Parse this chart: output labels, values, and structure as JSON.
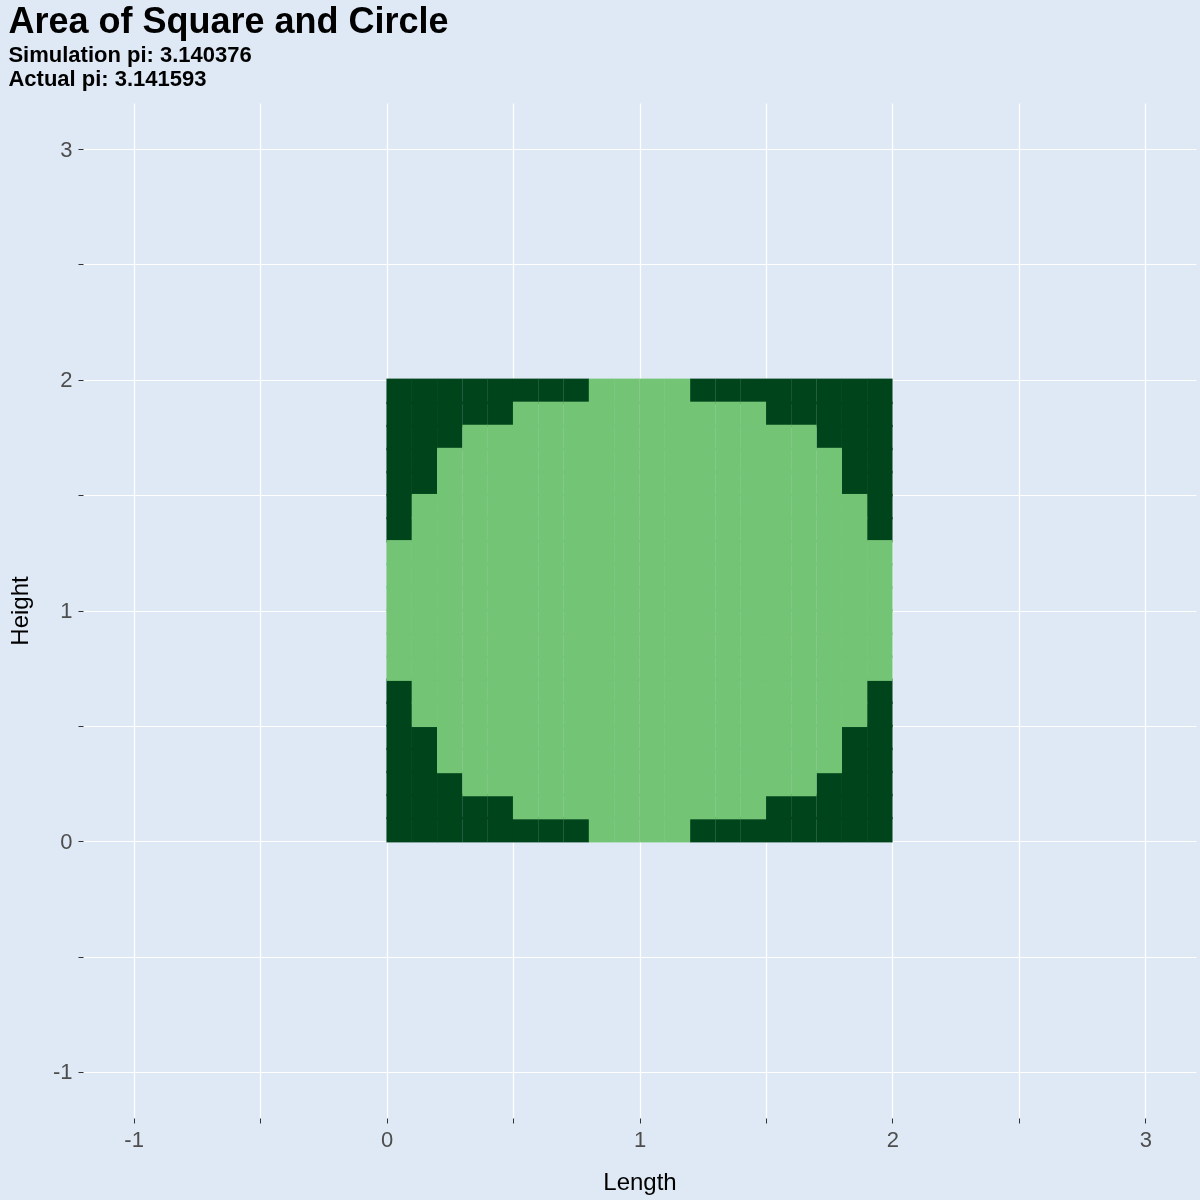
{
  "chart_data": {
    "type": "scatter",
    "title": "Area of Square and Circle",
    "subtitle": "Simulation pi: 3.140376\nActual pi: 3.141593",
    "xlabel": "Length",
    "ylabel": "Height",
    "xlim": [
      -1.2,
      3.2
    ],
    "ylim": [
      -1.2,
      3.2
    ],
    "xticks": [
      -1,
      {
        "value": -0.5,
        "label": null
      },
      0,
      {
        "value": 0.5,
        "label": null
      },
      1,
      {
        "value": 1.5,
        "label": null
      },
      2,
      {
        "value": 2.5,
        "label": null
      },
      3
    ],
    "yticks": [
      -1,
      {
        "value": -0.5,
        "label": null
      },
      0,
      {
        "value": 0.5,
        "label": null
      },
      1,
      {
        "value": 1.5,
        "label": null
      },
      2,
      {
        "value": 2.5,
        "label": null
      },
      3
    ],
    "grid": true,
    "marker": "square",
    "series": [
      {
        "color": "#00441b",
        "x": [
          0.05,
          0.15,
          0.25,
          0.35,
          0.45,
          0.55,
          0.65,
          0.75,
          1.25,
          1.35,
          1.45,
          1.55,
          1.65,
          1.75,
          1.85,
          1.95,
          0.05,
          0.15,
          0.25,
          0.35,
          0.45,
          1.55,
          1.65,
          1.75,
          1.85,
          1.95,
          0.05,
          0.15,
          0.25,
          1.75,
          1.85,
          1.95,
          0.05,
          0.15,
          1.85,
          1.95,
          0.05,
          0.15,
          1.85,
          1.95,
          0.05,
          1.95,
          0.05,
          1.95,
          0.05,
          1.95,
          0.05,
          1.95,
          0.05,
          0.15,
          1.85,
          1.95,
          0.05,
          0.15,
          1.85,
          1.95,
          0.05,
          0.15,
          0.25,
          1.75,
          1.85,
          1.95,
          0.05,
          0.15,
          0.25,
          0.35,
          0.45,
          1.55,
          1.65,
          1.75,
          1.85,
          1.95,
          0.05,
          0.15,
          0.25,
          0.35,
          0.45,
          0.55,
          0.65,
          0.75,
          1.25,
          1.35,
          1.45,
          1.55,
          1.65,
          1.75,
          1.85,
          1.95
        ],
        "values": [
          0.05,
          0.05,
          0.05,
          0.05,
          0.05,
          0.05,
          0.05,
          0.05,
          0.05,
          0.05,
          0.05,
          0.05,
          0.05,
          0.05,
          0.05,
          0.05,
          0.15,
          0.15,
          0.15,
          0.15,
          0.15,
          0.15,
          0.15,
          0.15,
          0.15,
          0.15,
          0.25,
          0.25,
          0.25,
          0.25,
          0.25,
          0.25,
          0.35,
          0.35,
          0.35,
          0.35,
          0.45,
          0.45,
          0.45,
          0.45,
          0.55,
          0.55,
          0.65,
          0.65,
          1.35,
          1.35,
          1.45,
          1.45,
          1.55,
          1.55,
          1.55,
          1.55,
          1.65,
          1.65,
          1.65,
          1.65,
          1.75,
          1.75,
          1.75,
          1.75,
          1.75,
          1.75,
          1.85,
          1.85,
          1.85,
          1.85,
          1.85,
          1.85,
          1.85,
          1.85,
          1.85,
          1.85,
          1.95,
          1.95,
          1.95,
          1.95,
          1.95,
          1.95,
          1.95,
          1.95,
          1.95,
          1.95,
          1.95,
          1.95,
          1.95,
          1.95,
          1.95,
          1.95
        ]
      },
      {
        "color": "#74c476",
        "x": [
          0.85,
          0.95,
          1.05,
          1.15,
          0.55,
          0.65,
          0.75,
          0.85,
          0.95,
          1.05,
          1.15,
          1.25,
          1.35,
          1.45,
          0.35,
          0.45,
          0.55,
          0.65,
          0.75,
          0.85,
          0.95,
          1.05,
          1.15,
          1.25,
          1.35,
          1.45,
          1.55,
          1.65,
          0.25,
          0.35,
          0.45,
          0.55,
          0.65,
          0.75,
          0.85,
          0.95,
          1.05,
          1.15,
          1.25,
          1.35,
          1.45,
          1.55,
          1.65,
          1.75,
          0.25,
          0.35,
          0.45,
          0.55,
          0.65,
          0.75,
          0.85,
          0.95,
          1.05,
          1.15,
          1.25,
          1.35,
          1.45,
          1.55,
          1.65,
          1.75,
          0.15,
          0.25,
          0.35,
          0.45,
          0.55,
          0.65,
          0.75,
          0.85,
          0.95,
          1.05,
          1.15,
          1.25,
          1.35,
          1.45,
          1.55,
          1.65,
          1.75,
          1.85,
          0.15,
          0.25,
          0.35,
          0.45,
          0.55,
          0.65,
          0.75,
          0.85,
          0.95,
          1.05,
          1.15,
          1.25,
          1.35,
          1.45,
          1.55,
          1.65,
          1.75,
          1.85,
          0.05,
          0.15,
          0.25,
          0.35,
          0.45,
          0.55,
          0.65,
          0.75,
          0.85,
          0.95,
          1.05,
          1.15,
          1.25,
          1.35,
          1.45,
          1.55,
          1.65,
          1.75,
          1.85,
          1.95,
          0.05,
          0.15,
          0.25,
          0.35,
          0.45,
          0.55,
          0.65,
          0.75,
          0.85,
          0.95,
          1.05,
          1.15,
          1.25,
          1.35,
          1.45,
          1.55,
          1.65,
          1.75,
          1.85,
          1.95,
          0.05,
          0.15,
          0.25,
          0.35,
          0.45,
          0.55,
          0.65,
          0.75,
          0.85,
          0.95,
          1.05,
          1.15,
          1.25,
          1.35,
          1.45,
          1.55,
          1.65,
          1.75,
          1.85,
          1.95,
          0.05,
          0.15,
          0.25,
          0.35,
          0.45,
          0.55,
          0.65,
          0.75,
          0.85,
          0.95,
          1.05,
          1.15,
          1.25,
          1.35,
          1.45,
          1.55,
          1.65,
          1.75,
          1.85,
          1.95,
          0.05,
          0.15,
          0.25,
          0.35,
          0.45,
          0.55,
          0.65,
          0.75,
          0.85,
          0.95,
          1.05,
          1.15,
          1.25,
          1.35,
          1.45,
          1.55,
          1.65,
          1.75,
          1.85,
          1.95,
          0.05,
          0.15,
          0.25,
          0.35,
          0.45,
          0.55,
          0.65,
          0.75,
          0.85,
          0.95,
          1.05,
          1.15,
          1.25,
          1.35,
          1.45,
          1.55,
          1.65,
          1.75,
          1.85,
          1.95,
          0.15,
          0.25,
          0.35,
          0.45,
          0.55,
          0.65,
          0.75,
          0.85,
          0.95,
          1.05,
          1.15,
          1.25,
          1.35,
          1.45,
          1.55,
          1.65,
          1.75,
          1.85,
          0.15,
          0.25,
          0.35,
          0.45,
          0.55,
          0.65,
          0.75,
          0.85,
          0.95,
          1.05,
          1.15,
          1.25,
          1.35,
          1.45,
          1.55,
          1.65,
          1.75,
          1.85,
          0.25,
          0.35,
          0.45,
          0.55,
          0.65,
          0.75,
          0.85,
          0.95,
          1.05,
          1.15,
          1.25,
          1.35,
          1.45,
          1.55,
          1.65,
          1.75,
          0.25,
          0.35,
          0.45,
          0.55,
          0.65,
          0.75,
          0.85,
          0.95,
          1.05,
          1.15,
          1.25,
          1.35,
          1.45,
          1.55,
          1.65,
          1.75,
          0.35,
          0.45,
          0.55,
          0.65,
          0.75,
          0.85,
          0.95,
          1.05,
          1.15,
          1.25,
          1.35,
          1.45,
          1.55,
          1.65,
          0.55,
          0.65,
          0.75,
          0.85,
          0.95,
          1.05,
          1.15,
          1.25,
          1.35,
          1.45,
          0.85,
          0.95,
          1.05,
          1.15
        ],
        "values": [
          0.05,
          0.05,
          0.05,
          0.05,
          0.15,
          0.15,
          0.15,
          0.15,
          0.15,
          0.15,
          0.15,
          0.15,
          0.15,
          0.15,
          0.25,
          0.25,
          0.25,
          0.25,
          0.25,
          0.25,
          0.25,
          0.25,
          0.25,
          0.25,
          0.25,
          0.25,
          0.25,
          0.25,
          0.35,
          0.35,
          0.35,
          0.35,
          0.35,
          0.35,
          0.35,
          0.35,
          0.35,
          0.35,
          0.35,
          0.35,
          0.35,
          0.35,
          0.35,
          0.35,
          0.45,
          0.45,
          0.45,
          0.45,
          0.45,
          0.45,
          0.45,
          0.45,
          0.45,
          0.45,
          0.45,
          0.45,
          0.45,
          0.45,
          0.45,
          0.45,
          0.55,
          0.55,
          0.55,
          0.55,
          0.55,
          0.55,
          0.55,
          0.55,
          0.55,
          0.55,
          0.55,
          0.55,
          0.55,
          0.55,
          0.55,
          0.55,
          0.55,
          0.55,
          0.65,
          0.65,
          0.65,
          0.65,
          0.65,
          0.65,
          0.65,
          0.65,
          0.65,
          0.65,
          0.65,
          0.65,
          0.65,
          0.65,
          0.65,
          0.65,
          0.65,
          0.65,
          0.75,
          0.75,
          0.75,
          0.75,
          0.75,
          0.75,
          0.75,
          0.75,
          0.75,
          0.75,
          0.75,
          0.75,
          0.75,
          0.75,
          0.75,
          0.75,
          0.75,
          0.75,
          0.75,
          0.75,
          0.85,
          0.85,
          0.85,
          0.85,
          0.85,
          0.85,
          0.85,
          0.85,
          0.85,
          0.85,
          0.85,
          0.85,
          0.85,
          0.85,
          0.85,
          0.85,
          0.85,
          0.85,
          0.85,
          0.85,
          0.95,
          0.95,
          0.95,
          0.95,
          0.95,
          0.95,
          0.95,
          0.95,
          0.95,
          0.95,
          0.95,
          0.95,
          0.95,
          0.95,
          0.95,
          0.95,
          0.95,
          0.95,
          0.95,
          0.95,
          1.05,
          1.05,
          1.05,
          1.05,
          1.05,
          1.05,
          1.05,
          1.05,
          1.05,
          1.05,
          1.05,
          1.05,
          1.05,
          1.05,
          1.05,
          1.05,
          1.05,
          1.05,
          1.05,
          1.05,
          1.15,
          1.15,
          1.15,
          1.15,
          1.15,
          1.15,
          1.15,
          1.15,
          1.15,
          1.15,
          1.15,
          1.15,
          1.15,
          1.15,
          1.15,
          1.15,
          1.15,
          1.15,
          1.15,
          1.15,
          1.25,
          1.25,
          1.25,
          1.25,
          1.25,
          1.25,
          1.25,
          1.25,
          1.25,
          1.25,
          1.25,
          1.25,
          1.25,
          1.25,
          1.25,
          1.25,
          1.25,
          1.25,
          1.25,
          1.25,
          1.35,
          1.35,
          1.35,
          1.35,
          1.35,
          1.35,
          1.35,
          1.35,
          1.35,
          1.35,
          1.35,
          1.35,
          1.35,
          1.35,
          1.35,
          1.35,
          1.35,
          1.35,
          1.45,
          1.45,
          1.45,
          1.45,
          1.45,
          1.45,
          1.45,
          1.45,
          1.45,
          1.45,
          1.45,
          1.45,
          1.45,
          1.45,
          1.45,
          1.45,
          1.45,
          1.45,
          1.55,
          1.55,
          1.55,
          1.55,
          1.55,
          1.55,
          1.55,
          1.55,
          1.55,
          1.55,
          1.55,
          1.55,
          1.55,
          1.55,
          1.55,
          1.55,
          1.65,
          1.65,
          1.65,
          1.65,
          1.65,
          1.65,
          1.65,
          1.65,
          1.65,
          1.65,
          1.65,
          1.65,
          1.65,
          1.65,
          1.65,
          1.65,
          1.75,
          1.75,
          1.75,
          1.75,
          1.75,
          1.75,
          1.75,
          1.75,
          1.75,
          1.75,
          1.75,
          1.75,
          1.75,
          1.75,
          1.85,
          1.85,
          1.85,
          1.85,
          1.85,
          1.85,
          1.85,
          1.85,
          1.85,
          1.85,
          1.95,
          1.95,
          1.95,
          1.95
        ]
      }
    ]
  }
}
